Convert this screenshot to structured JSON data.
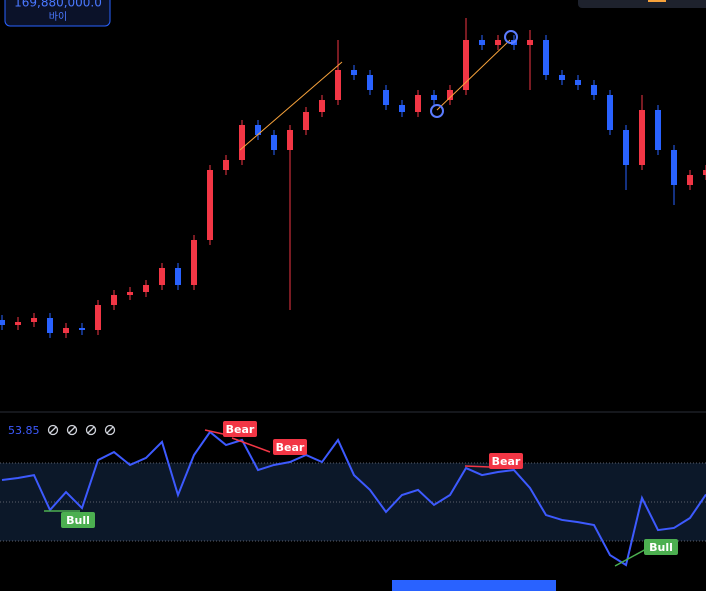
{
  "chart_data": [
    {
      "type": "candlestick",
      "price_label": "169,880,000.0",
      "price_label_sub": "바이",
      "up_color": "#f23645",
      "down_color": "#2962ff",
      "ylim": [
        165900000,
        170000000
      ],
      "open": [
        166800000,
        166750000,
        166780000,
        166820000,
        166670000,
        166720000,
        166700000,
        166950000,
        167050000,
        167080000,
        167150000,
        167320000,
        167150000,
        167600000,
        168300000,
        168400000,
        168750000,
        168650000,
        168500000,
        168700000,
        168880000,
        169000000,
        169300000,
        169250000,
        169100000,
        168950000,
        168880000,
        169050000,
        169000000,
        169100000,
        169600000,
        169550000,
        169600000,
        169550000,
        169600000,
        169250000,
        169200000,
        169150000,
        169050000,
        168700000,
        168350000,
        168900000,
        168500000,
        168150000,
        168250000
      ],
      "high": [
        166850000,
        166830000,
        166870000,
        166870000,
        166770000,
        166770000,
        167000000,
        167100000,
        167130000,
        167200000,
        167370000,
        167370000,
        167650000,
        168350000,
        168450000,
        168800000,
        168800000,
        168700000,
        168750000,
        168930000,
        169050000,
        169600000,
        169350000,
        169300000,
        169150000,
        169000000,
        169100000,
        169100000,
        169150000,
        169820000,
        169650000,
        169650000,
        169650000,
        169700000,
        169650000,
        169300000,
        169250000,
        169200000,
        169100000,
        168750000,
        169050000,
        168950000,
        168550000,
        168300000,
        168350000
      ],
      "low": [
        166700000,
        166700000,
        166730000,
        166620000,
        166620000,
        166650000,
        166650000,
        166900000,
        167000000,
        167030000,
        167100000,
        167100000,
        167100000,
        167550000,
        168250000,
        168350000,
        168600000,
        168450000,
        166900000,
        168650000,
        168830000,
        168950000,
        169200000,
        169050000,
        168900000,
        168830000,
        168830000,
        168950000,
        168950000,
        169050000,
        169500000,
        169500000,
        169500000,
        169100000,
        169200000,
        169150000,
        169100000,
        169000000,
        168650000,
        168100000,
        168300000,
        168450000,
        167950000,
        168100000,
        168200000
      ],
      "close": [
        166750000,
        166780000,
        166820000,
        166670000,
        166720000,
        166700000,
        166950000,
        167050000,
        167080000,
        167150000,
        167320000,
        167150000,
        167600000,
        168300000,
        168400000,
        168750000,
        168650000,
        168500000,
        168700000,
        168880000,
        169000000,
        169300000,
        169250000,
        169100000,
        168950000,
        168880000,
        169050000,
        169000000,
        169100000,
        169600000,
        169550000,
        169600000,
        169550000,
        169600000,
        169250000,
        169200000,
        169150000,
        169050000,
        168700000,
        168350000,
        168900000,
        168500000,
        168150000,
        168250000,
        168300000
      ]
    },
    {
      "type": "line",
      "color": "#3d5afe",
      "ylim": [
        4.36,
        93.08
      ],
      "bands": [
        30,
        50,
        70
      ],
      "values": [
        61.3,
        62.3,
        63.8,
        45.9,
        55.1,
        46.9,
        71.5,
        75.6,
        69.0,
        72.6,
        80.8,
        53.6,
        74.1,
        85.9,
        79.2,
        81.8,
        66.4,
        69.0,
        70.5,
        74.1,
        70.5,
        81.8,
        63.8,
        56.2,
        44.9,
        53.6,
        56.2,
        48.5,
        53.6,
        67.4,
        63.8,
        65.4,
        66.4,
        57.2,
        43.3,
        40.8,
        39.7,
        38.2,
        22.8,
        17.7,
        52.1,
        35.6,
        36.7,
        41.8,
        53.85
      ],
      "annotations": [
        "Bull",
        "Bear",
        "Bear",
        "Bear",
        "Bull"
      ]
    }
  ]
}
